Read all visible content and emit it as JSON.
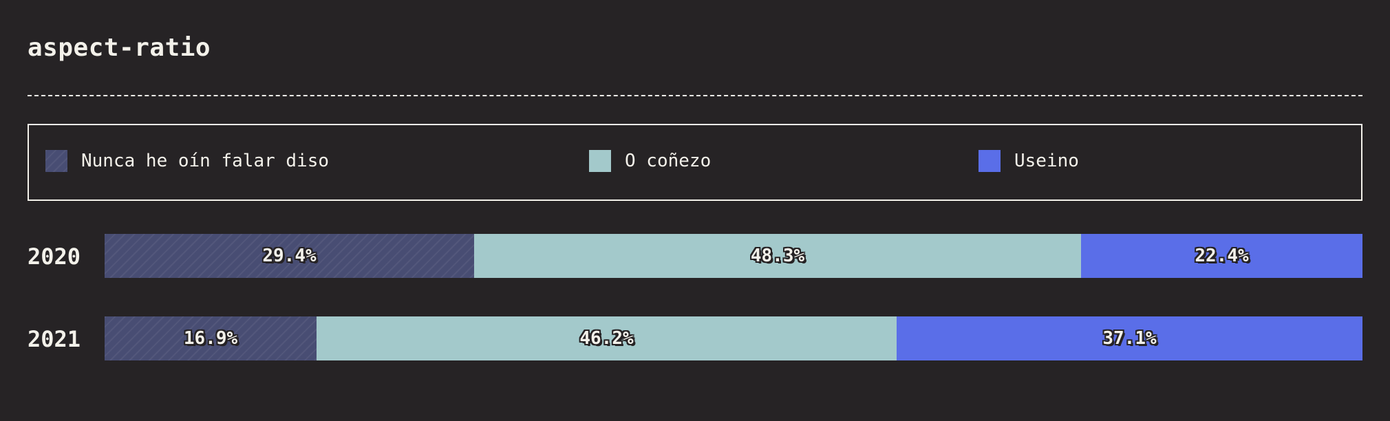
{
  "title": "aspect-ratio",
  "legend": [
    {
      "label": "Nunca he oín falar diso",
      "color": "#484d73"
    },
    {
      "label": "O coñezo",
      "color": "#a3c9cb"
    },
    {
      "label": "Useino",
      "color": "#5a6ee8"
    }
  ],
  "chart_data": {
    "type": "bar",
    "orientation": "horizontal",
    "stacked": true,
    "title": "aspect-ratio",
    "categories": [
      "2020",
      "2021"
    ],
    "series": [
      {
        "name": "Nunca he oín falar diso",
        "color": "#484d73",
        "values": [
          29.4,
          16.9
        ],
        "labels": [
          "29.4%",
          "16.9%"
        ]
      },
      {
        "name": "O coñezo",
        "color": "#a3c9cb",
        "values": [
          48.3,
          46.2
        ],
        "labels": [
          "48.3%",
          "46.2%"
        ]
      },
      {
        "name": "Useino",
        "color": "#5a6ee8",
        "values": [
          22.4,
          37.1
        ],
        "labels": [
          "22.4%",
          "37.1%"
        ]
      }
    ],
    "legend_position": "top",
    "grid": false
  }
}
